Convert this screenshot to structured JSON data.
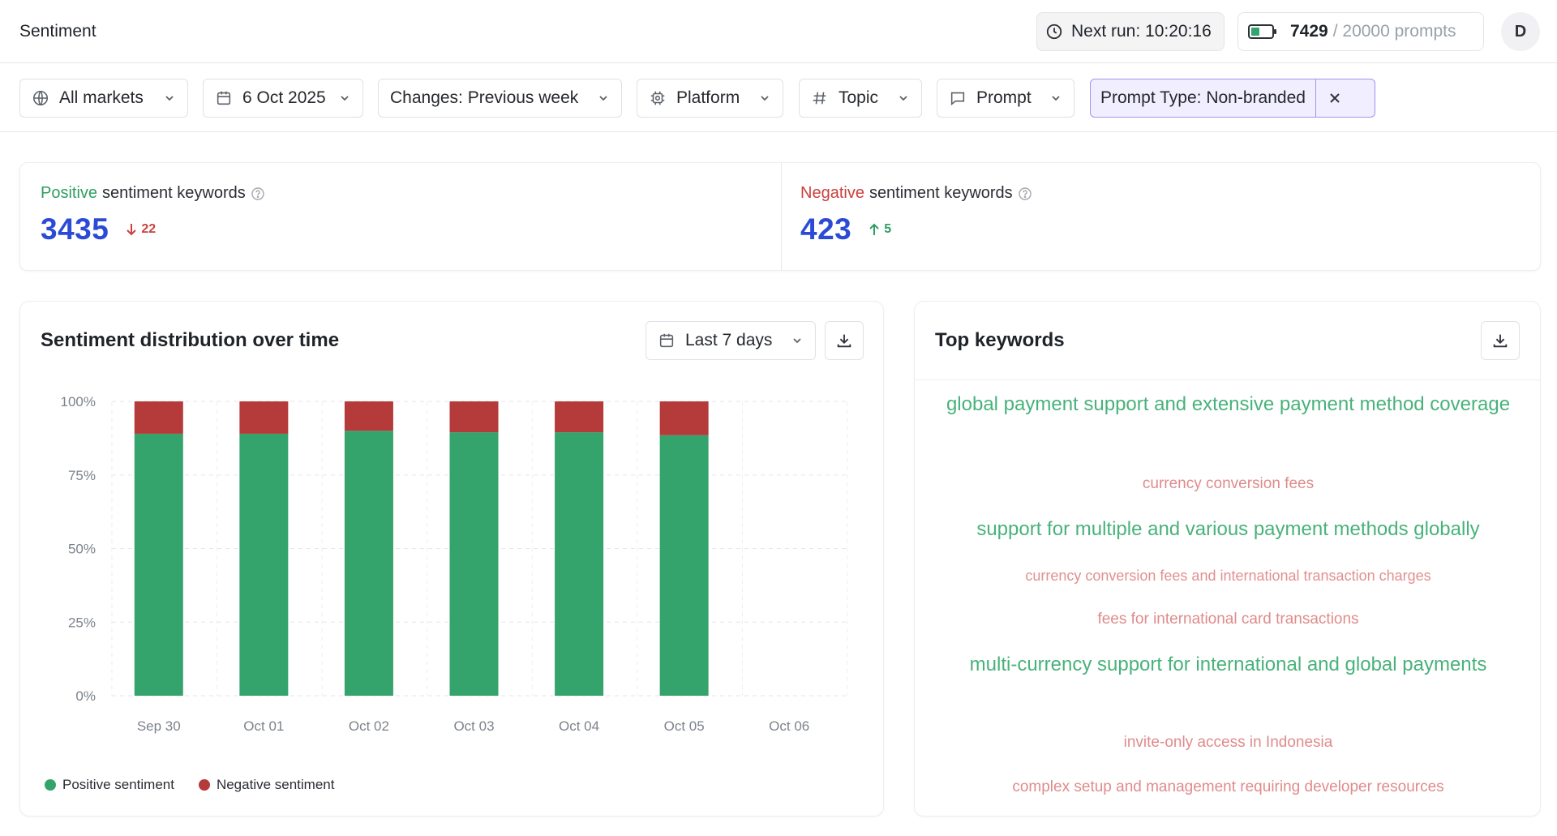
{
  "header": {
    "title": "Sentiment",
    "next_run": "Next run: 10:20:16",
    "credits_used": "7429",
    "credits_total": "/ 20000 prompts",
    "avatar_initial": "D"
  },
  "filters": {
    "markets": "All markets",
    "date": "6 Oct 2025",
    "changes": "Changes: Previous week",
    "platform": "Platform",
    "topic": "Topic",
    "prompt": "Prompt",
    "prompt_type": "Prompt Type:  Non-branded"
  },
  "kpis": {
    "positive": {
      "label_colored": "Positive",
      "label_rest": "sentiment keywords",
      "value": "3435",
      "delta": "22",
      "delta_direction": "down"
    },
    "negative": {
      "label_colored": "Negative",
      "label_rest": "sentiment keywords",
      "value": "423",
      "delta": "5",
      "delta_direction": "up"
    }
  },
  "distribution_panel": {
    "title": "Sentiment distribution over time",
    "range": "Last 7 days",
    "legend_positive": "Positive sentiment",
    "legend_negative": "Negative sentiment"
  },
  "keywords_panel": {
    "title": "Top keywords",
    "items": [
      {
        "text": "global payment support and extensive payment method coverage",
        "sentiment": "positive"
      },
      {
        "text": "currency conversion fees",
        "sentiment": "negative"
      },
      {
        "text": "support for multiple and various payment methods globally",
        "sentiment": "positive"
      },
      {
        "text": "currency conversion fees and international transaction charges",
        "sentiment": "negative"
      },
      {
        "text": "fees for international card transactions",
        "sentiment": "negative"
      },
      {
        "text": "multi-currency support for international and global payments",
        "sentiment": "positive"
      },
      {
        "text": "invite-only access in Indonesia",
        "sentiment": "negative"
      },
      {
        "text": "complex setup and management requiring developer resources",
        "sentiment": "negative"
      }
    ]
  },
  "colors": {
    "positive": "#34a46c",
    "negative": "#b53a3a",
    "accent_blue": "#2b4ad6"
  },
  "chart_data": {
    "type": "bar",
    "stacked": true,
    "categories": [
      "Sep 30",
      "Oct 01",
      "Oct 02",
      "Oct 03",
      "Oct 04",
      "Oct 05",
      "Oct 06"
    ],
    "series": [
      {
        "name": "Positive sentiment",
        "values": [
          89,
          89,
          90,
          89.5,
          89.5,
          88.5,
          null
        ]
      },
      {
        "name": "Negative sentiment",
        "values": [
          11,
          11,
          10,
          10.5,
          10.5,
          11.5,
          null
        ]
      }
    ],
    "ylim": [
      0,
      100
    ],
    "yticks": [
      "0%",
      "25%",
      "50%",
      "75%",
      "100%"
    ],
    "grid": true,
    "legend": "bottom-left"
  }
}
